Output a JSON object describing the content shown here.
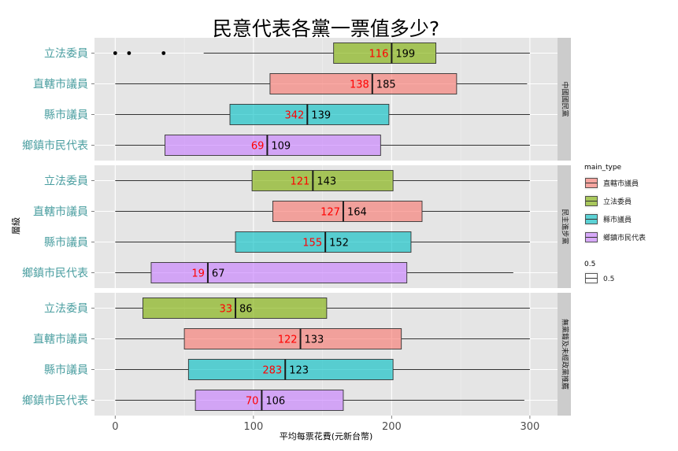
{
  "chart_data": {
    "type": "box",
    "title": "民意代表各黨一票值多少?",
    "xlabel": "平均每票花費(元新台幣)",
    "ylabel": "層級",
    "xlim": [
      -15,
      320
    ],
    "x_ticks": [
      0,
      100,
      200,
      300
    ],
    "x_tick_labels": [
      "0",
      "100",
      "200",
      "300"
    ],
    "grid": true,
    "categories": [
      "立法委員",
      "直轄市議員",
      "縣市議員",
      "鄉鎮市民代表"
    ],
    "legend": {
      "position": "right",
      "title": "main_type",
      "entries": [
        {
          "label": "直轄市議員",
          "color": "#F8766D"
        },
        {
          "label": "立法委員",
          "color": "#7CAE00"
        },
        {
          "label": "縣市議員",
          "color": "#00BFC4"
        },
        {
          "label": "鄉鎮市民代表",
          "color": "#C77CFF"
        }
      ],
      "size_title": "0.5",
      "size_label": "0.5"
    },
    "category_colors": {
      "立法委員": "#7CAE00",
      "直轄市議員": "#F8766D",
      "縣市議員": "#00BFC4",
      "鄉鎮市民代表": "#C77CFF"
    },
    "panels": [
      {
        "strip": "中國國民黨",
        "boxes": [
          {
            "category": "立法委員",
            "whisker_low": 64,
            "q1": 158,
            "median": 200,
            "q3": 232,
            "whisker_high": 300,
            "outliers": [
              0,
              10,
              35
            ],
            "count": "116",
            "median_label": "199"
          },
          {
            "category": "直轄市議員",
            "whisker_low": 0,
            "q1": 112,
            "median": 186,
            "q3": 247,
            "whisker_high": 298,
            "outliers": [],
            "count": "138",
            "median_label": "185"
          },
          {
            "category": "縣市議員",
            "whisker_low": 0,
            "q1": 83,
            "median": 139,
            "q3": 198,
            "whisker_high": 300,
            "outliers": [],
            "count": "342",
            "median_label": "139"
          },
          {
            "category": "鄉鎮市民代表",
            "whisker_low": 0,
            "q1": 36,
            "median": 110,
            "q3": 192,
            "whisker_high": 300,
            "outliers": [],
            "count": "69",
            "median_label": "109"
          }
        ]
      },
      {
        "strip": "民主進步黨",
        "boxes": [
          {
            "category": "立法委員",
            "whisker_low": 0,
            "q1": 99,
            "median": 143,
            "q3": 201,
            "whisker_high": 300,
            "outliers": [],
            "count": "121",
            "median_label": "143"
          },
          {
            "category": "直轄市議員",
            "whisker_low": 0,
            "q1": 114,
            "median": 165,
            "q3": 222,
            "whisker_high": 300,
            "outliers": [],
            "count": "127",
            "median_label": "164"
          },
          {
            "category": "縣市議員",
            "whisker_low": 0,
            "q1": 87,
            "median": 152,
            "q3": 214,
            "whisker_high": 300,
            "outliers": [],
            "count": "155",
            "median_label": "152"
          },
          {
            "category": "鄉鎮市民代表",
            "whisker_low": 0,
            "q1": 26,
            "median": 67,
            "q3": 211,
            "whisker_high": 288,
            "outliers": [],
            "count": "19",
            "median_label": "67"
          }
        ]
      },
      {
        "strip": "無黨籍及未經政黨推薦",
        "boxes": [
          {
            "category": "立法委員",
            "whisker_low": 0,
            "q1": 20,
            "median": 87,
            "q3": 153,
            "whisker_high": 300,
            "outliers": [],
            "count": "33",
            "median_label": "86"
          },
          {
            "category": "直轄市議員",
            "whisker_low": 0,
            "q1": 50,
            "median": 134,
            "q3": 207,
            "whisker_high": 300,
            "outliers": [],
            "count": "122",
            "median_label": "133"
          },
          {
            "category": "縣市議員",
            "whisker_low": 0,
            "q1": 53,
            "median": 123,
            "q3": 201,
            "whisker_high": 300,
            "outliers": [],
            "count": "283",
            "median_label": "123"
          },
          {
            "category": "鄉鎮市民代表",
            "whisker_low": 0,
            "q1": 58,
            "median": 106,
            "q3": 165,
            "whisker_high": 296,
            "outliers": [],
            "count": "70",
            "median_label": "106"
          }
        ]
      }
    ]
  }
}
